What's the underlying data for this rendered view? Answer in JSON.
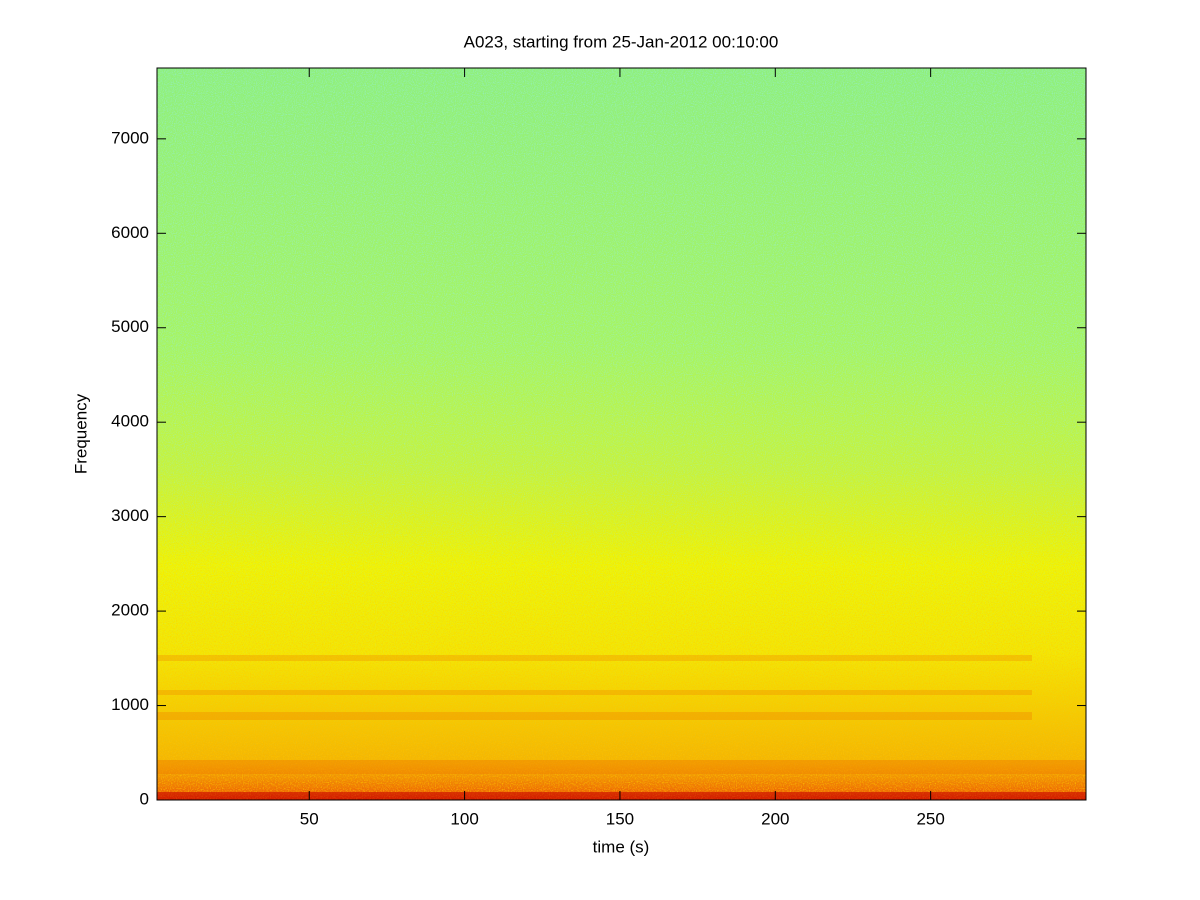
{
  "chart_data": {
    "type": "spectrogram",
    "title": "A023, starting from 25-Jan-2012 00:10:00",
    "x_label": "time (s)",
    "y_label": "Frequency",
    "xlim": [
      1,
      300
    ],
    "xticks": [
      50,
      100,
      150,
      200,
      250
    ],
    "ylim": [
      0,
      7750
    ],
    "yticks": [
      0,
      1000,
      2000,
      3000,
      4000,
      5000,
      6000,
      7000
    ],
    "grid": false
  }
}
